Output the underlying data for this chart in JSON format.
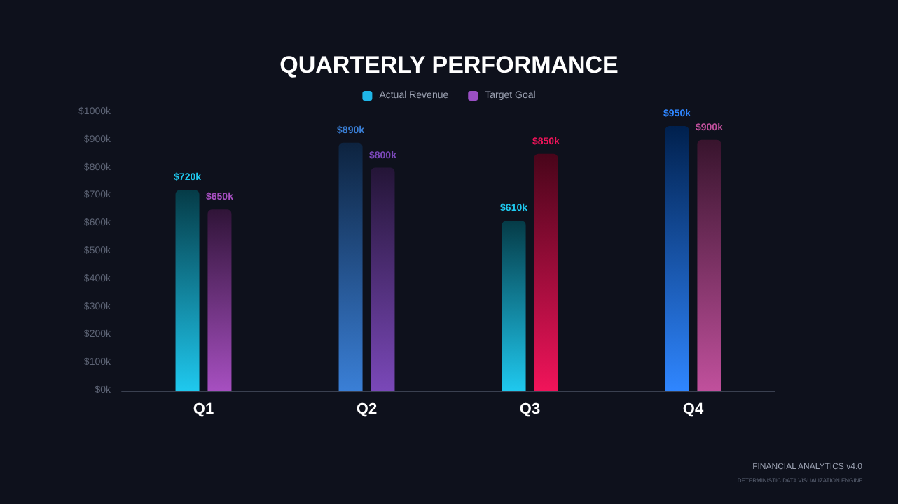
{
  "chart_data": {
    "type": "bar",
    "title": "QUARTERLY PERFORMANCE",
    "categories": [
      "Q1",
      "Q2",
      "Q3",
      "Q4"
    ],
    "series": [
      {
        "name": "Actual Revenue",
        "color": "#1fb6e8",
        "colors": [
          "#1fc8ee",
          "#3a7fd6",
          "#1fc8ee",
          "#2f86ff"
        ],
        "values": [
          720,
          890,
          610,
          950
        ],
        "value_labels": [
          "$720k",
          "$890k",
          "$610k",
          "$950k"
        ]
      },
      {
        "name": "Target Goal",
        "color": "#9a4fc4",
        "colors": [
          "#a64fc0",
          "#7a48b8",
          "#f0145a",
          "#c0509c"
        ],
        "values": [
          650,
          800,
          850,
          900
        ],
        "value_labels": [
          "$650k",
          "$800k",
          "$850k",
          "$900k"
        ]
      }
    ],
    "ylim": [
      0,
      1000
    ],
    "yticks": [
      {
        "value": 0,
        "label": "$0k"
      },
      {
        "value": 100,
        "label": "$100k"
      },
      {
        "value": 200,
        "label": "$200k"
      },
      {
        "value": 300,
        "label": "$300k"
      },
      {
        "value": 400,
        "label": "$400k"
      },
      {
        "value": 500,
        "label": "$500k"
      },
      {
        "value": 600,
        "label": "$600k"
      },
      {
        "value": 700,
        "label": "$700k"
      },
      {
        "value": 800,
        "label": "$800k"
      },
      {
        "value": 900,
        "label": "$900k"
      },
      {
        "value": 1000,
        "label": "$1000k"
      }
    ],
    "legend": "top",
    "annotations": [
      "FINANCIAL ANALYTICS v4.0",
      "DETERMINISTIC DATA VISUALIZATION ENGINE"
    ]
  }
}
